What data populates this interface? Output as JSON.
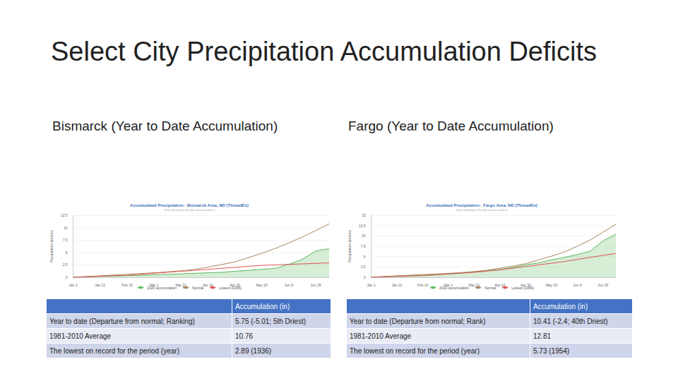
{
  "title": "Select City Precipitation Accumulation Deficits",
  "chart_data": [
    {
      "type": "line",
      "title": "Accumulated Precipitation - Bismarck Area, ND (ThreadEx)",
      "subtitle": "Click and drag in the plot area to zoom in",
      "y_label": "Precipitation (inches)",
      "categories": [
        "Jan 1",
        null,
        "Jan 21",
        null,
        "Feb 10",
        null,
        "Mar 1",
        null,
        "Mar 21",
        null,
        "Apr 10",
        null,
        "Apr 30",
        null,
        "May 20",
        null,
        "Jun 9",
        null,
        "Jun 29",
        null
      ],
      "series": [
        {
          "name": "2020 accumulation",
          "color": "#5cb85c",
          "type": "area",
          "values": [
            0,
            0.1,
            0.2,
            0.25,
            0.35,
            0.4,
            0.5,
            0.6,
            0.7,
            0.8,
            0.9,
            1.0,
            1.2,
            1.4,
            1.6,
            1.8,
            2.6,
            3.6,
            5.3,
            5.75
          ]
        },
        {
          "name": "Normal",
          "color": "#a8855f",
          "type": "line",
          "values": [
            0,
            0.15,
            0.3,
            0.45,
            0.6,
            0.75,
            0.9,
            1.1,
            1.3,
            1.55,
            2.05,
            2.55,
            3.1,
            3.95,
            4.85,
            5.8,
            6.9,
            8.1,
            9.4,
            10.76
          ]
        },
        {
          "name": "Lowest (1936)",
          "color": "#e05555",
          "type": "line",
          "values": [
            0,
            0.1,
            0.2,
            0.3,
            0.4,
            0.6,
            0.8,
            1.0,
            1.2,
            1.4,
            1.6,
            1.8,
            2.0,
            2.2,
            2.4,
            2.5,
            2.6,
            2.7,
            2.8,
            2.89
          ]
        }
      ],
      "ylim": [
        0,
        12.5
      ],
      "yticks": [
        0,
        2.5,
        5,
        7.5,
        10,
        12.5
      ],
      "grid": true,
      "legend": "bottom"
    },
    {
      "type": "line",
      "title": "Accumulated Precipitation - Fargo Area, ND (ThreadEx)",
      "subtitle": "Click and drag in the plot area to zoom in",
      "y_label": "Precipitation (inches)",
      "categories": [
        "Jan 1",
        null,
        "Jan 21",
        null,
        "Feb 10",
        null,
        "Mar 1",
        null,
        "Mar 21",
        null,
        "Apr 10",
        null,
        "Apr 30",
        null,
        "May 20",
        null,
        "Jun 9",
        null,
        "Jun 29",
        null
      ],
      "series": [
        {
          "name": "2020 accumulation",
          "color": "#5cb85c",
          "type": "area",
          "values": [
            0,
            0.15,
            0.3,
            0.4,
            0.5,
            0.6,
            0.8,
            1.0,
            1.3,
            1.6,
            1.9,
            2.4,
            3.0,
            3.5,
            4.2,
            4.8,
            5.5,
            6.3,
            8.8,
            10.41
          ]
        },
        {
          "name": "Normal",
          "color": "#a8855f",
          "type": "line",
          "values": [
            0,
            0.2,
            0.35,
            0.5,
            0.65,
            0.8,
            0.95,
            1.15,
            1.4,
            1.7,
            2.2,
            2.7,
            3.3,
            4.2,
            5.1,
            6.1,
            7.5,
            9.0,
            10.9,
            12.81
          ]
        },
        {
          "name": "Lowest (1954)",
          "color": "#e05555",
          "type": "line",
          "values": [
            0,
            0.1,
            0.2,
            0.3,
            0.4,
            0.6,
            0.8,
            1.0,
            1.2,
            1.5,
            1.8,
            2.2,
            2.6,
            3.0,
            3.4,
            3.8,
            4.3,
            4.8,
            5.3,
            5.73
          ]
        }
      ],
      "ylim": [
        0,
        15
      ],
      "yticks": [
        0,
        2.5,
        5,
        7.5,
        10,
        12.5,
        15
      ],
      "grid": true,
      "legend": "bottom"
    }
  ],
  "panels": [
    {
      "heading": "Bismarck (Year to Date Accumulation)",
      "table": {
        "header": [
          null,
          "Accumulation (in)"
        ],
        "rows": [
          [
            "Year to date (Departure from normal; Ranking)",
            "5.75 (-5.01; 5th Driest)"
          ],
          [
            "1981-2010 Average",
            "10.76"
          ],
          [
            "The lowest on record for the period (year)",
            "2.89 (1936)"
          ]
        ]
      }
    },
    {
      "heading": "Fargo (Year to Date Accumulation)",
      "table": {
        "header": [
          null,
          "Accumulation (in)"
        ],
        "rows": [
          [
            "Year to date (Departure from normal; Rank)",
            "10.41 (-2.4; 40th Driest)"
          ],
          [
            "1981-2010 Average",
            "12.81"
          ],
          [
            "The lowest on record for the period (year)",
            "5.73 (1954)"
          ]
        ]
      }
    }
  ]
}
